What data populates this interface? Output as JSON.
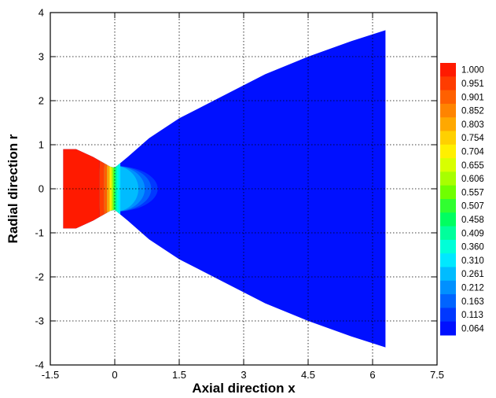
{
  "chart_data": {
    "type": "contour",
    "title": "",
    "xlabel": "Axial direction x",
    "ylabel": "Radial direction r",
    "xlim": [
      -1.5,
      7.5
    ],
    "ylim": [
      -4,
      4
    ],
    "x_ticks": [
      -1.5,
      0,
      1.5,
      3,
      4.5,
      6,
      7.5
    ],
    "x_tick_labels": [
      "-1.5",
      "0",
      "1.5",
      "3",
      "4.5",
      "6",
      "7.5"
    ],
    "y_ticks": [
      -4,
      -3,
      -2,
      -1,
      0,
      1,
      2,
      3,
      4
    ],
    "y_tick_labels": [
      "-4",
      "-3",
      "-2",
      "-1",
      "0",
      "1",
      "2",
      "3",
      "4"
    ],
    "grid": true,
    "legend_placement": "right",
    "colorbar_levels": [
      "1.000",
      "0.951",
      "0.901",
      "0.852",
      "0.803",
      "0.754",
      "0.704",
      "0.655",
      "0.606",
      "0.557",
      "0.507",
      "0.458",
      "0.409",
      "0.360",
      "0.310",
      "0.261",
      "0.212",
      "0.163",
      "0.113",
      "0.064"
    ],
    "colorbar_colors": [
      "#ff1a00",
      "#ff3c00",
      "#ff6000",
      "#ff8400",
      "#ffa800",
      "#ffd000",
      "#fff000",
      "#d8ff00",
      "#a8ff00",
      "#70ff00",
      "#30ff30",
      "#00ff60",
      "#00ff9c",
      "#00ffd8",
      "#00e8ff",
      "#00bcff",
      "#0090ff",
      "#0064ff",
      "#0038ff",
      "#0010ff"
    ],
    "domain_upper_wall": [
      {
        "x": -1.2,
        "r": 0.9
      },
      {
        "x": -0.9,
        "r": 0.9
      },
      {
        "x": -0.5,
        "r": 0.72
      },
      {
        "x": -0.1,
        "r": 0.5
      },
      {
        "x": 0.0,
        "r": 0.48
      },
      {
        "x": 0.3,
        "r": 0.72
      },
      {
        "x": 0.8,
        "r": 1.15
      },
      {
        "x": 1.5,
        "r": 1.6
      },
      {
        "x": 2.5,
        "r": 2.1
      },
      {
        "x": 3.5,
        "r": 2.6
      },
      {
        "x": 4.5,
        "r": 3.0
      },
      {
        "x": 5.5,
        "r": 3.35
      },
      {
        "x": 6.3,
        "r": 3.6
      }
    ],
    "domain_lower_wall_mirrored": true,
    "background_value": 0.064
  }
}
